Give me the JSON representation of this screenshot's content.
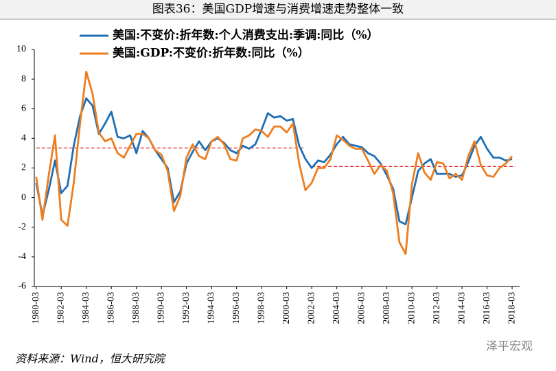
{
  "chart_data": {
    "type": "line",
    "title": "图表36：美国GDP增速与消费增速走势整体一致",
    "source": "资料来源：Wind，恒大研究院",
    "watermark": "泽平宏观",
    "x": [
      1980,
      1980.5,
      1981,
      1981.5,
      1982,
      1982.5,
      1983,
      1983.5,
      1984,
      1984.5,
      1985,
      1985.5,
      1986,
      1986.5,
      1987,
      1987.5,
      1988,
      1988.5,
      1989,
      1989.5,
      1990,
      1990.5,
      1991,
      1991.5,
      1992,
      1992.5,
      1993,
      1993.5,
      1994,
      1994.5,
      1995,
      1995.5,
      1996,
      1996.5,
      1997,
      1997.5,
      1998,
      1998.5,
      1999,
      1999.5,
      2000,
      2000.5,
      2001,
      2001.5,
      2002,
      2002.5,
      2003,
      2003.5,
      2004,
      2004.5,
      2005,
      2005.5,
      2006,
      2006.5,
      2007,
      2007.5,
      2008,
      2008.5,
      2009,
      2009.5,
      2010,
      2010.5,
      2011,
      2011.5,
      2012,
      2012.5,
      2013,
      2013.5,
      2014,
      2014.5,
      2015,
      2015.5,
      2016,
      2016.5,
      2017,
      2017.5,
      2018
    ],
    "series": [
      {
        "name": "美国:不变价:折年数:个人消费支出:季调:同比（%）",
        "color": "#1f6fb5",
        "values": [
          1.0,
          -1.2,
          0.5,
          2.5,
          0.3,
          0.8,
          3.5,
          5.5,
          6.7,
          6.2,
          4.3,
          5.0,
          5.8,
          4.1,
          4.0,
          4.2,
          3.0,
          4.5,
          4.0,
          3.2,
          2.6,
          2.0,
          -0.3,
          0.4,
          2.3,
          3.1,
          3.8,
          3.2,
          3.8,
          4.0,
          3.7,
          3.2,
          3.0,
          3.5,
          3.3,
          3.6,
          4.6,
          5.7,
          5.4,
          5.5,
          5.2,
          5.3,
          3.5,
          2.6,
          2.0,
          2.5,
          2.4,
          2.9,
          3.6,
          4.1,
          3.6,
          3.5,
          3.4,
          3.0,
          2.8,
          2.3,
          1.5,
          0.6,
          -1.6,
          -1.8,
          0.0,
          1.8,
          2.3,
          2.6,
          1.6,
          1.6,
          1.6,
          1.4,
          1.5,
          2.4,
          3.5,
          4.1,
          3.3,
          2.7,
          2.7,
          2.5,
          2.6
        ]
      },
      {
        "name": "美国:GDP:不变价:折年数:同比（%）",
        "color": "#ed7d1f",
        "values": [
          1.4,
          -1.5,
          1.5,
          4.2,
          -1.5,
          -1.9,
          1.0,
          5.0,
          8.5,
          7.0,
          4.4,
          3.8,
          4.0,
          3.0,
          2.7,
          3.5,
          4.3,
          4.3,
          4.0,
          3.2,
          2.9,
          1.8,
          -0.9,
          0.1,
          2.7,
          3.6,
          2.8,
          2.6,
          3.8,
          4.1,
          3.6,
          2.6,
          2.5,
          4.0,
          4.2,
          4.6,
          4.5,
          4.1,
          4.8,
          4.8,
          4.4,
          5.0,
          2.3,
          0.5,
          1.0,
          2.0,
          2.0,
          2.6,
          4.2,
          3.9,
          3.5,
          3.3,
          3.3,
          2.5,
          1.6,
          2.2,
          1.8,
          0.3,
          -3.0,
          -3.8,
          0.9,
          3.0,
          1.7,
          1.2,
          2.4,
          2.3,
          1.3,
          1.6,
          1.2,
          2.8,
          3.8,
          2.2,
          1.5,
          1.4,
          2.0,
          2.3,
          2.8
        ]
      }
    ],
    "reference_lines": [
      {
        "value": 3.35,
        "x": [
          1980,
          2001.5
        ],
        "color": "#e02020"
      },
      {
        "value": 2.1,
        "x": [
          2002,
          2018.25
        ],
        "color": "#e02020"
      }
    ],
    "xlim": [
      1979.85,
      2018.6
    ],
    "xticks": [
      {
        "value": 1980,
        "label": "1980-03"
      },
      {
        "value": 1982,
        "label": "1982-03"
      },
      {
        "value": 1984,
        "label": "1984-03"
      },
      {
        "value": 1986,
        "label": "1986-03"
      },
      {
        "value": 1988,
        "label": "1988-03"
      },
      {
        "value": 1990,
        "label": "1990-03"
      },
      {
        "value": 1992,
        "label": "1992-03"
      },
      {
        "value": 1994,
        "label": "1994-03"
      },
      {
        "value": 1996,
        "label": "1996-03"
      },
      {
        "value": 1998,
        "label": "1998-03"
      },
      {
        "value": 2000,
        "label": "2000-03"
      },
      {
        "value": 2002,
        "label": "2002-03"
      },
      {
        "value": 2004,
        "label": "2004-03"
      },
      {
        "value": 2006,
        "label": "2006-03"
      },
      {
        "value": 2008,
        "label": "2008-03"
      },
      {
        "value": 2010,
        "label": "2010-03"
      },
      {
        "value": 2012,
        "label": "2012-03"
      },
      {
        "value": 2014,
        "label": "2014-03"
      },
      {
        "value": 2016,
        "label": "2016-03"
      },
      {
        "value": 2018,
        "label": "2018-03"
      }
    ],
    "ylim": [
      -6,
      10
    ],
    "yticks": [
      -6,
      -4,
      -2,
      0,
      2,
      4,
      6,
      8,
      10
    ],
    "grid": false
  }
}
